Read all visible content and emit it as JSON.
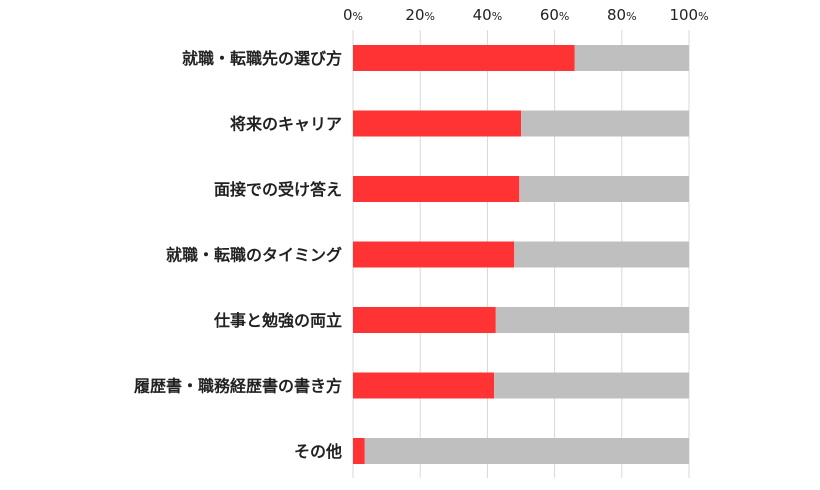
{
  "chart_data": {
    "type": "bar",
    "orientation": "horizontal",
    "stacked_to_100": true,
    "categories": [
      "就職・転職先の選び方",
      "将来のキャリア",
      "面接での受け答え",
      "就職・転職のタイミング",
      "仕事と勉強の両立",
      "履歴書・職務経歴書の書き方",
      "その他"
    ],
    "values": [
      66,
      50,
      49.5,
      48,
      42.5,
      42,
      3.5
    ],
    "remainder_values": [
      34,
      50,
      50.5,
      52,
      57.5,
      58,
      96.5
    ],
    "xlim": [
      0,
      100
    ],
    "x_ticks": [
      {
        "num": "0",
        "unit": "%"
      },
      {
        "num": "20",
        "unit": "%"
      },
      {
        "num": "40",
        "unit": "%"
      },
      {
        "num": "60",
        "unit": "%"
      },
      {
        "num": "80",
        "unit": "%"
      },
      {
        "num": "100",
        "unit": "%"
      }
    ],
    "grid": true,
    "legend": "none",
    "colors": {
      "value": "#ff3333",
      "remainder": "#bfbfbf",
      "grid": "#d9d9d9",
      "text": "#222222"
    }
  }
}
